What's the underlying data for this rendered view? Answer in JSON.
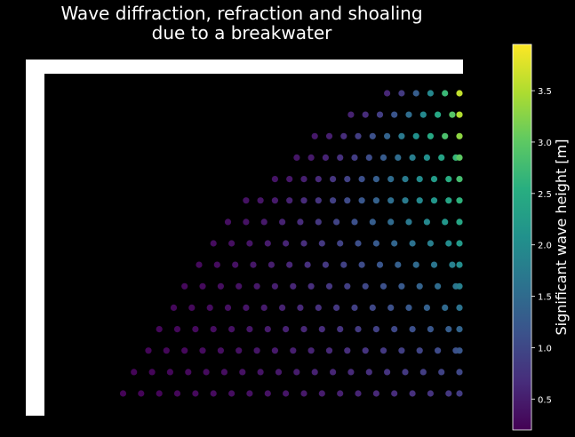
{
  "chart_data": {
    "type": "scatter",
    "title": "Wave diffraction, refraction and shoaling\ndue to a breakwater",
    "colorbar": {
      "label": "Significant wave height [m]",
      "colormap": "viridis",
      "range": [
        0.2,
        3.95
      ],
      "ticks": [
        0.5,
        1.0,
        1.5,
        2.0,
        2.5,
        3.0,
        3.5
      ],
      "tick_labels": [
        "0.5",
        "1.0",
        "1.5",
        "2.0",
        "2.5",
        "3.0",
        "3.5"
      ]
    },
    "rows": [
      {
        "x_start": 0.8,
        "x_end": 1.0,
        "x_spacing": 0.04,
        "h_start": 0.6,
        "h_end": 3.6
      },
      {
        "x_start": 0.7,
        "x_end": 1.0,
        "x_spacing": 0.04,
        "h_start": 0.55,
        "h_end": 3.5
      },
      {
        "x_start": 0.6,
        "x_end": 1.0,
        "x_spacing": 0.04,
        "h_start": 0.45,
        "h_end": 3.3
      },
      {
        "x_start": 0.55,
        "x_end": 1.0,
        "x_spacing": 0.04,
        "h_start": 0.42,
        "h_end": 3.0
      },
      {
        "x_start": 0.49,
        "x_end": 1.0,
        "x_spacing": 0.04,
        "h_start": 0.4,
        "h_end": 2.8
      },
      {
        "x_start": 0.41,
        "x_end": 1.0,
        "x_spacing": 0.04,
        "h_start": 0.38,
        "h_end": 2.6
      },
      {
        "x_start": 0.36,
        "x_end": 1.0,
        "x_spacing": 0.05,
        "h_start": 0.35,
        "h_end": 2.4
      },
      {
        "x_start": 0.32,
        "x_end": 1.0,
        "x_spacing": 0.05,
        "h_start": 0.32,
        "h_end": 2.2
      },
      {
        "x_start": 0.28,
        "x_end": 1.0,
        "x_spacing": 0.05,
        "h_start": 0.3,
        "h_end": 2.0
      },
      {
        "x_start": 0.24,
        "x_end": 1.0,
        "x_spacing": 0.05,
        "h_start": 0.28,
        "h_end": 1.8
      },
      {
        "x_start": 0.21,
        "x_end": 1.0,
        "x_spacing": 0.05,
        "h_start": 0.27,
        "h_end": 1.6
      },
      {
        "x_start": 0.17,
        "x_end": 1.0,
        "x_spacing": 0.05,
        "h_start": 0.26,
        "h_end": 1.4
      },
      {
        "x_start": 0.14,
        "x_end": 1.0,
        "x_spacing": 0.05,
        "h_start": 0.25,
        "h_end": 1.2
      },
      {
        "x_start": 0.1,
        "x_end": 1.0,
        "x_spacing": 0.05,
        "h_start": 0.24,
        "h_end": 1.0
      },
      {
        "x_start": 0.07,
        "x_end": 1.0,
        "x_spacing": 0.05,
        "h_start": 0.23,
        "h_end": 0.85
      }
    ],
    "breakwater": {
      "color": "#ffffff"
    },
    "background_color": "#000000",
    "grid": false
  }
}
